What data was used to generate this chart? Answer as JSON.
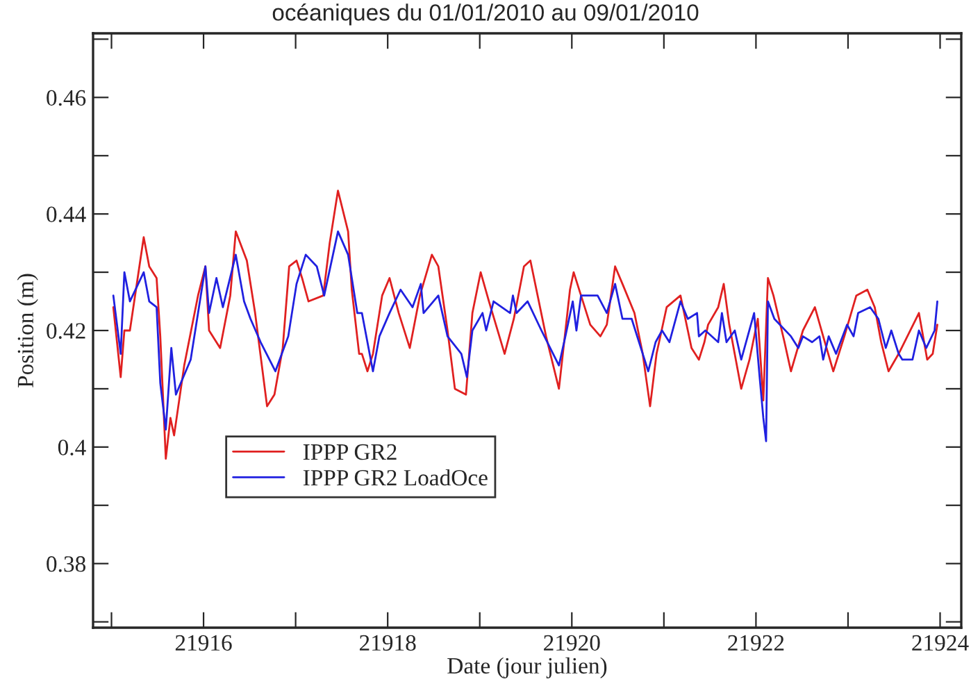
{
  "chart_data": {
    "type": "line",
    "title": "océaniques du 01/01/2010 au 09/01/2010",
    "xlabel": "Date (jour julien)",
    "ylabel": "Position (m)",
    "xlim": [
      21914.8,
      21924.23
    ],
    "ylim": [
      0.369,
      0.471
    ],
    "xticks": [
      {
        "value": 21915,
        "label": null
      },
      21916,
      {
        "value": 21917,
        "label": null
      },
      21918,
      {
        "value": 21919,
        "label": null
      },
      21920,
      {
        "value": 21921,
        "label": null
      },
      21922,
      {
        "value": 21923,
        "label": null
      },
      21924
    ],
    "yticks": [
      {
        "value": 0.37,
        "label": null
      },
      0.38,
      {
        "value": 0.39,
        "label": null
      },
      0.4,
      {
        "value": 0.41,
        "label": null
      },
      0.42,
      {
        "value": 0.43,
        "label": null
      },
      0.44,
      {
        "value": 0.45,
        "label": null
      },
      0.46,
      {
        "value": 0.47,
        "label": null
      }
    ],
    "grid": false,
    "legend": "bottom left",
    "marker": "none",
    "line_style": "solid",
    "series": [
      {
        "name": "IPPP GR2",
        "color": "#e02020",
        "x": [
          21915.02,
          21915.1,
          21915.14,
          21915.2,
          21915.35,
          21915.41,
          21915.49,
          21915.53,
          21915.59,
          21915.64,
          21915.68,
          21915.79,
          21915.94,
          21916.02,
          21916.06,
          21916.18,
          21916.29,
          21916.35,
          21916.47,
          21916.56,
          21916.69,
          21916.77,
          21916.86,
          21916.93,
          21917.01,
          21917.07,
          21917.14,
          21917.3,
          21917.37,
          21917.46,
          21917.57,
          21917.61,
          21917.69,
          21917.72,
          21917.78,
          21917.84,
          21917.94,
          21918.02,
          21918.12,
          21918.24,
          21918.35,
          21918.48,
          21918.55,
          21918.65,
          21918.73,
          21918.85,
          21918.92,
          21919.01,
          21919.1,
          21919.27,
          21919.37,
          21919.48,
          21919.55,
          21919.72,
          21919.86,
          21919.98,
          21920.02,
          21920.1,
          21920.2,
          21920.31,
          21920.38,
          21920.47,
          21920.55,
          21920.68,
          21920.77,
          21920.85,
          21920.92,
          21921.03,
          21921.18,
          21921.26,
          21921.3,
          21921.38,
          21921.44,
          21921.48,
          21921.59,
          21921.65,
          21921.71,
          21921.84,
          21921.93,
          21922.02,
          21922.08,
          21922.13,
          21922.19,
          21922.31,
          21922.38,
          21922.51,
          21922.64,
          21922.73,
          21922.84,
          21922.96,
          21923.09,
          21923.21,
          21923.29,
          21923.36,
          21923.44,
          21923.55,
          21923.77,
          21923.86,
          21923.92,
          21923.97
        ],
        "values": [
          0.424,
          0.412,
          0.42,
          0.42,
          0.436,
          0.431,
          0.429,
          0.419,
          0.398,
          0.405,
          0.402,
          0.414,
          0.426,
          0.431,
          0.42,
          0.417,
          0.426,
          0.437,
          0.432,
          0.423,
          0.407,
          0.409,
          0.417,
          0.431,
          0.432,
          0.429,
          0.425,
          0.426,
          0.435,
          0.444,
          0.437,
          0.427,
          0.416,
          0.416,
          0.413,
          0.416,
          0.426,
          0.429,
          0.423,
          0.417,
          0.426,
          0.433,
          0.431,
          0.42,
          0.41,
          0.409,
          0.423,
          0.43,
          0.425,
          0.416,
          0.422,
          0.431,
          0.432,
          0.419,
          0.41,
          0.427,
          0.43,
          0.426,
          0.421,
          0.419,
          0.421,
          0.431,
          0.428,
          0.423,
          0.416,
          0.407,
          0.416,
          0.424,
          0.426,
          0.42,
          0.417,
          0.415,
          0.418,
          0.421,
          0.424,
          0.428,
          0.421,
          0.41,
          0.415,
          0.422,
          0.408,
          0.429,
          0.426,
          0.418,
          0.413,
          0.42,
          0.424,
          0.419,
          0.413,
          0.419,
          0.426,
          0.427,
          0.424,
          0.418,
          0.413,
          0.416,
          0.423,
          0.415,
          0.416,
          0.421
        ]
      },
      {
        "name": "IPPP GR2 LoadOce",
        "color": "#2020e0",
        "x": [
          21915.02,
          21915.1,
          21915.14,
          21915.2,
          21915.35,
          21915.41,
          21915.49,
          21915.53,
          21915.59,
          21915.65,
          21915.7,
          21915.86,
          21916.02,
          21916.06,
          21916.14,
          21916.21,
          21916.35,
          21916.44,
          21916.51,
          21916.62,
          21916.78,
          21916.92,
          21917.01,
          21917.11,
          21917.23,
          21917.31,
          21917.46,
          21917.57,
          21917.67,
          21917.72,
          21917.84,
          21917.91,
          21918.02,
          21918.14,
          21918.27,
          21918.36,
          21918.39,
          21918.55,
          21918.65,
          21918.8,
          21918.86,
          21918.92,
          21919.03,
          21919.07,
          21919.15,
          21919.33,
          21919.36,
          21919.4,
          21919.52,
          21919.67,
          21919.86,
          21919.93,
          21920.01,
          21920.05,
          21920.1,
          21920.28,
          21920.38,
          21920.47,
          21920.55,
          21920.65,
          21920.73,
          21920.83,
          21920.91,
          21920.98,
          21921.06,
          21921.18,
          21921.26,
          21921.36,
          21921.38,
          21921.45,
          21921.59,
          21921.63,
          21921.68,
          21921.77,
          21921.84,
          21921.98,
          21922.04,
          21922.08,
          21922.11,
          21922.13,
          21922.2,
          21922.38,
          21922.46,
          21922.51,
          21922.61,
          21922.69,
          21922.73,
          21922.79,
          21922.87,
          21922.99,
          21923.06,
          21923.11,
          21923.24,
          21923.33,
          21923.41,
          21923.47,
          21923.55,
          21923.59,
          21923.7,
          21923.77,
          21923.85,
          21923.94,
          21923.97
        ],
        "values": [
          0.426,
          0.416,
          0.43,
          0.425,
          0.43,
          0.425,
          0.424,
          0.411,
          0.403,
          0.417,
          0.409,
          0.415,
          0.431,
          0.423,
          0.429,
          0.424,
          0.433,
          0.425,
          0.422,
          0.418,
          0.413,
          0.419,
          0.428,
          0.433,
          0.431,
          0.426,
          0.437,
          0.433,
          0.423,
          0.423,
          0.413,
          0.419,
          0.423,
          0.427,
          0.424,
          0.428,
          0.423,
          0.426,
          0.419,
          0.416,
          0.412,
          0.42,
          0.423,
          0.42,
          0.425,
          0.423,
          0.426,
          0.423,
          0.425,
          0.42,
          0.414,
          0.419,
          0.425,
          0.42,
          0.426,
          0.426,
          0.423,
          0.428,
          0.422,
          0.422,
          0.418,
          0.413,
          0.418,
          0.42,
          0.418,
          0.425,
          0.422,
          0.423,
          0.419,
          0.42,
          0.418,
          0.423,
          0.418,
          0.42,
          0.415,
          0.423,
          0.412,
          0.405,
          0.401,
          0.425,
          0.422,
          0.419,
          0.417,
          0.419,
          0.418,
          0.419,
          0.415,
          0.419,
          0.416,
          0.421,
          0.419,
          0.423,
          0.424,
          0.422,
          0.417,
          0.42,
          0.416,
          0.415,
          0.415,
          0.42,
          0.417,
          0.42,
          0.425
        ]
      }
    ]
  }
}
